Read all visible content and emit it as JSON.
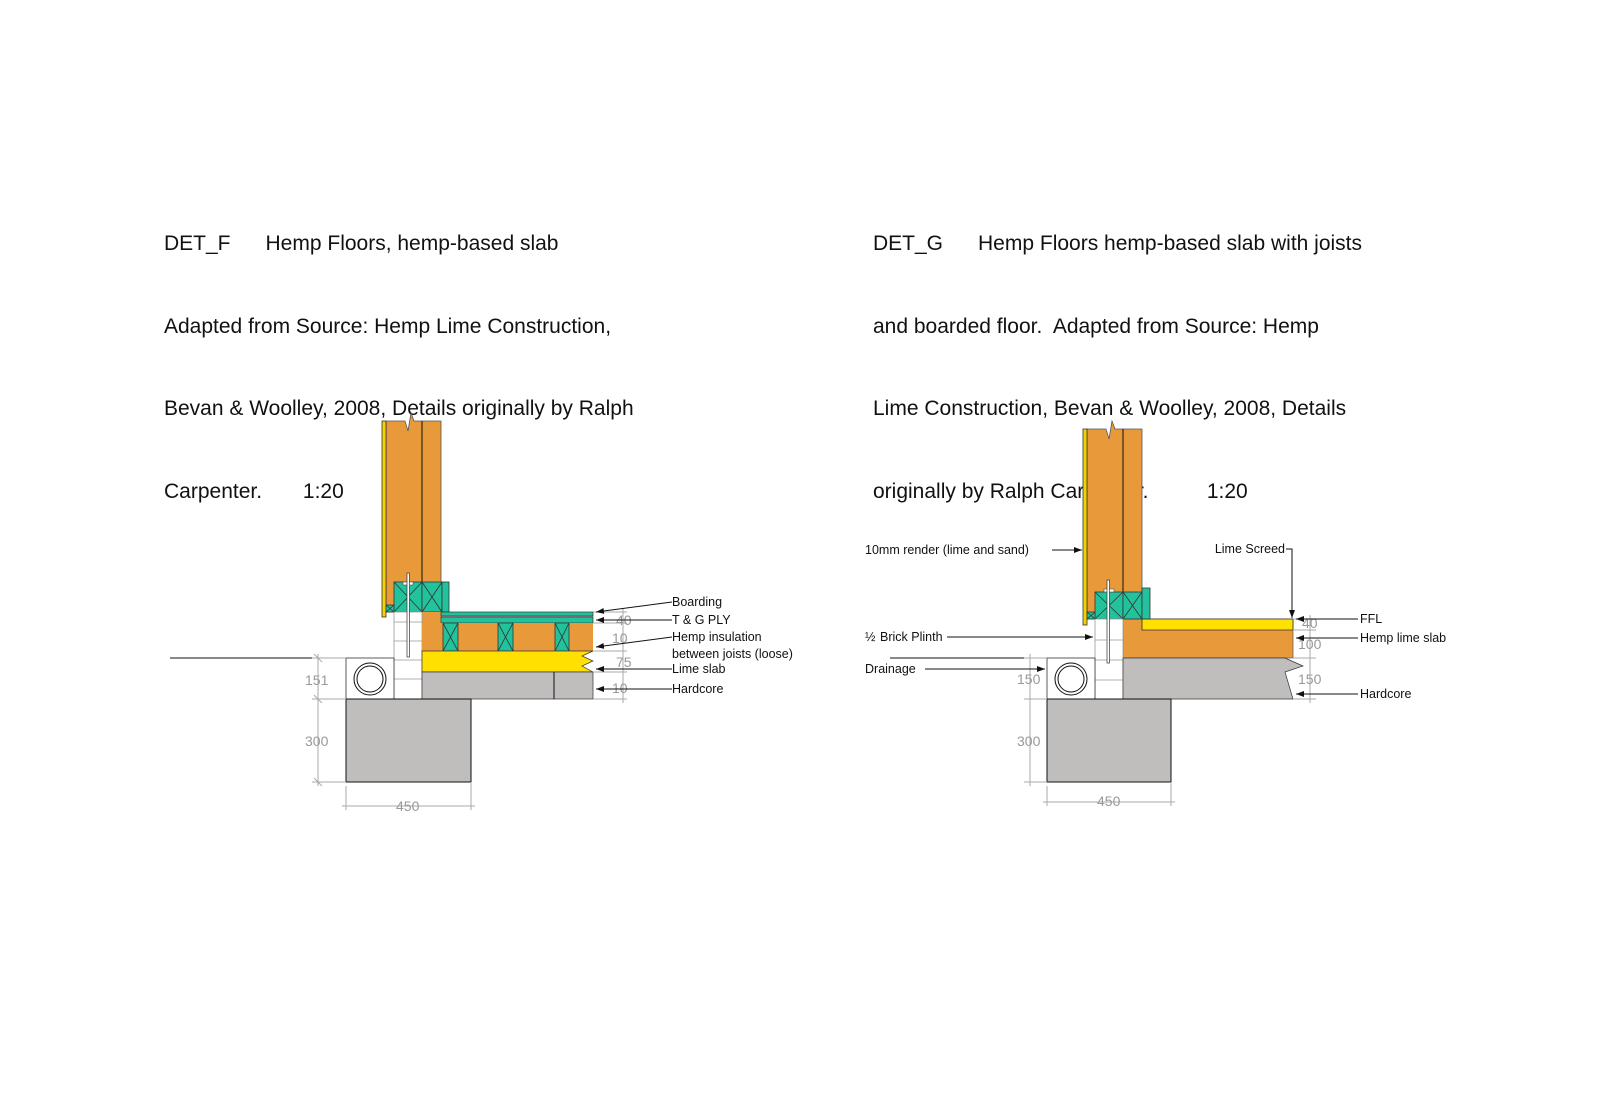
{
  "colors": {
    "hemp": "#E8993A",
    "timber": "#22C29C",
    "lime": "#FFE000",
    "concrete": "#C0BDBD",
    "render": "#F2D200"
  },
  "det_f": {
    "title_lines": [
      "DET_F      Hemp Floors, hemp-based slab",
      "Adapted from Source: Hemp Lime Construction,",
      "Bevan & Woolley, 2008, Details originally by Ralph",
      "Carpenter.       1:20"
    ],
    "labels": {
      "boarding": "Boarding",
      "tg_ply": "T & G PLY",
      "hemp_insulation_1": "Hemp insulation",
      "hemp_insulation_2": "between joists (loose)",
      "lime_slab": "Lime slab",
      "hardcore": "Hardcore"
    },
    "dims": {
      "plinth": "151",
      "foundation_depth": "300",
      "foundation_width": "450",
      "boarding": "40",
      "insulation": "10",
      "slab": "75",
      "hardcore": "10"
    }
  },
  "det_g": {
    "title_lines": [
      "DET_G      Hemp Floors hemp-based slab with joists",
      "and boarded floor.  Adapted from Source: Hemp",
      "Lime Construction, Bevan & Woolley, 2008, Details",
      "originally by Ralph Carpenter.          1:20"
    ],
    "labels": {
      "render": "10mm render (lime and sand)",
      "brick_plinth_fraction": "½",
      "brick_plinth": "Brick Plinth",
      "drainage": "Drainage",
      "lime_screed": "Lime Screed",
      "ffl": "FFL",
      "hemp_lime_slab": "Hemp lime slab",
      "hardcore": "Hardcore"
    },
    "dims": {
      "plinth": "150",
      "foundation_depth": "300",
      "foundation_width": "450",
      "screed": "40",
      "slab": "100",
      "hardcore": "150"
    }
  }
}
